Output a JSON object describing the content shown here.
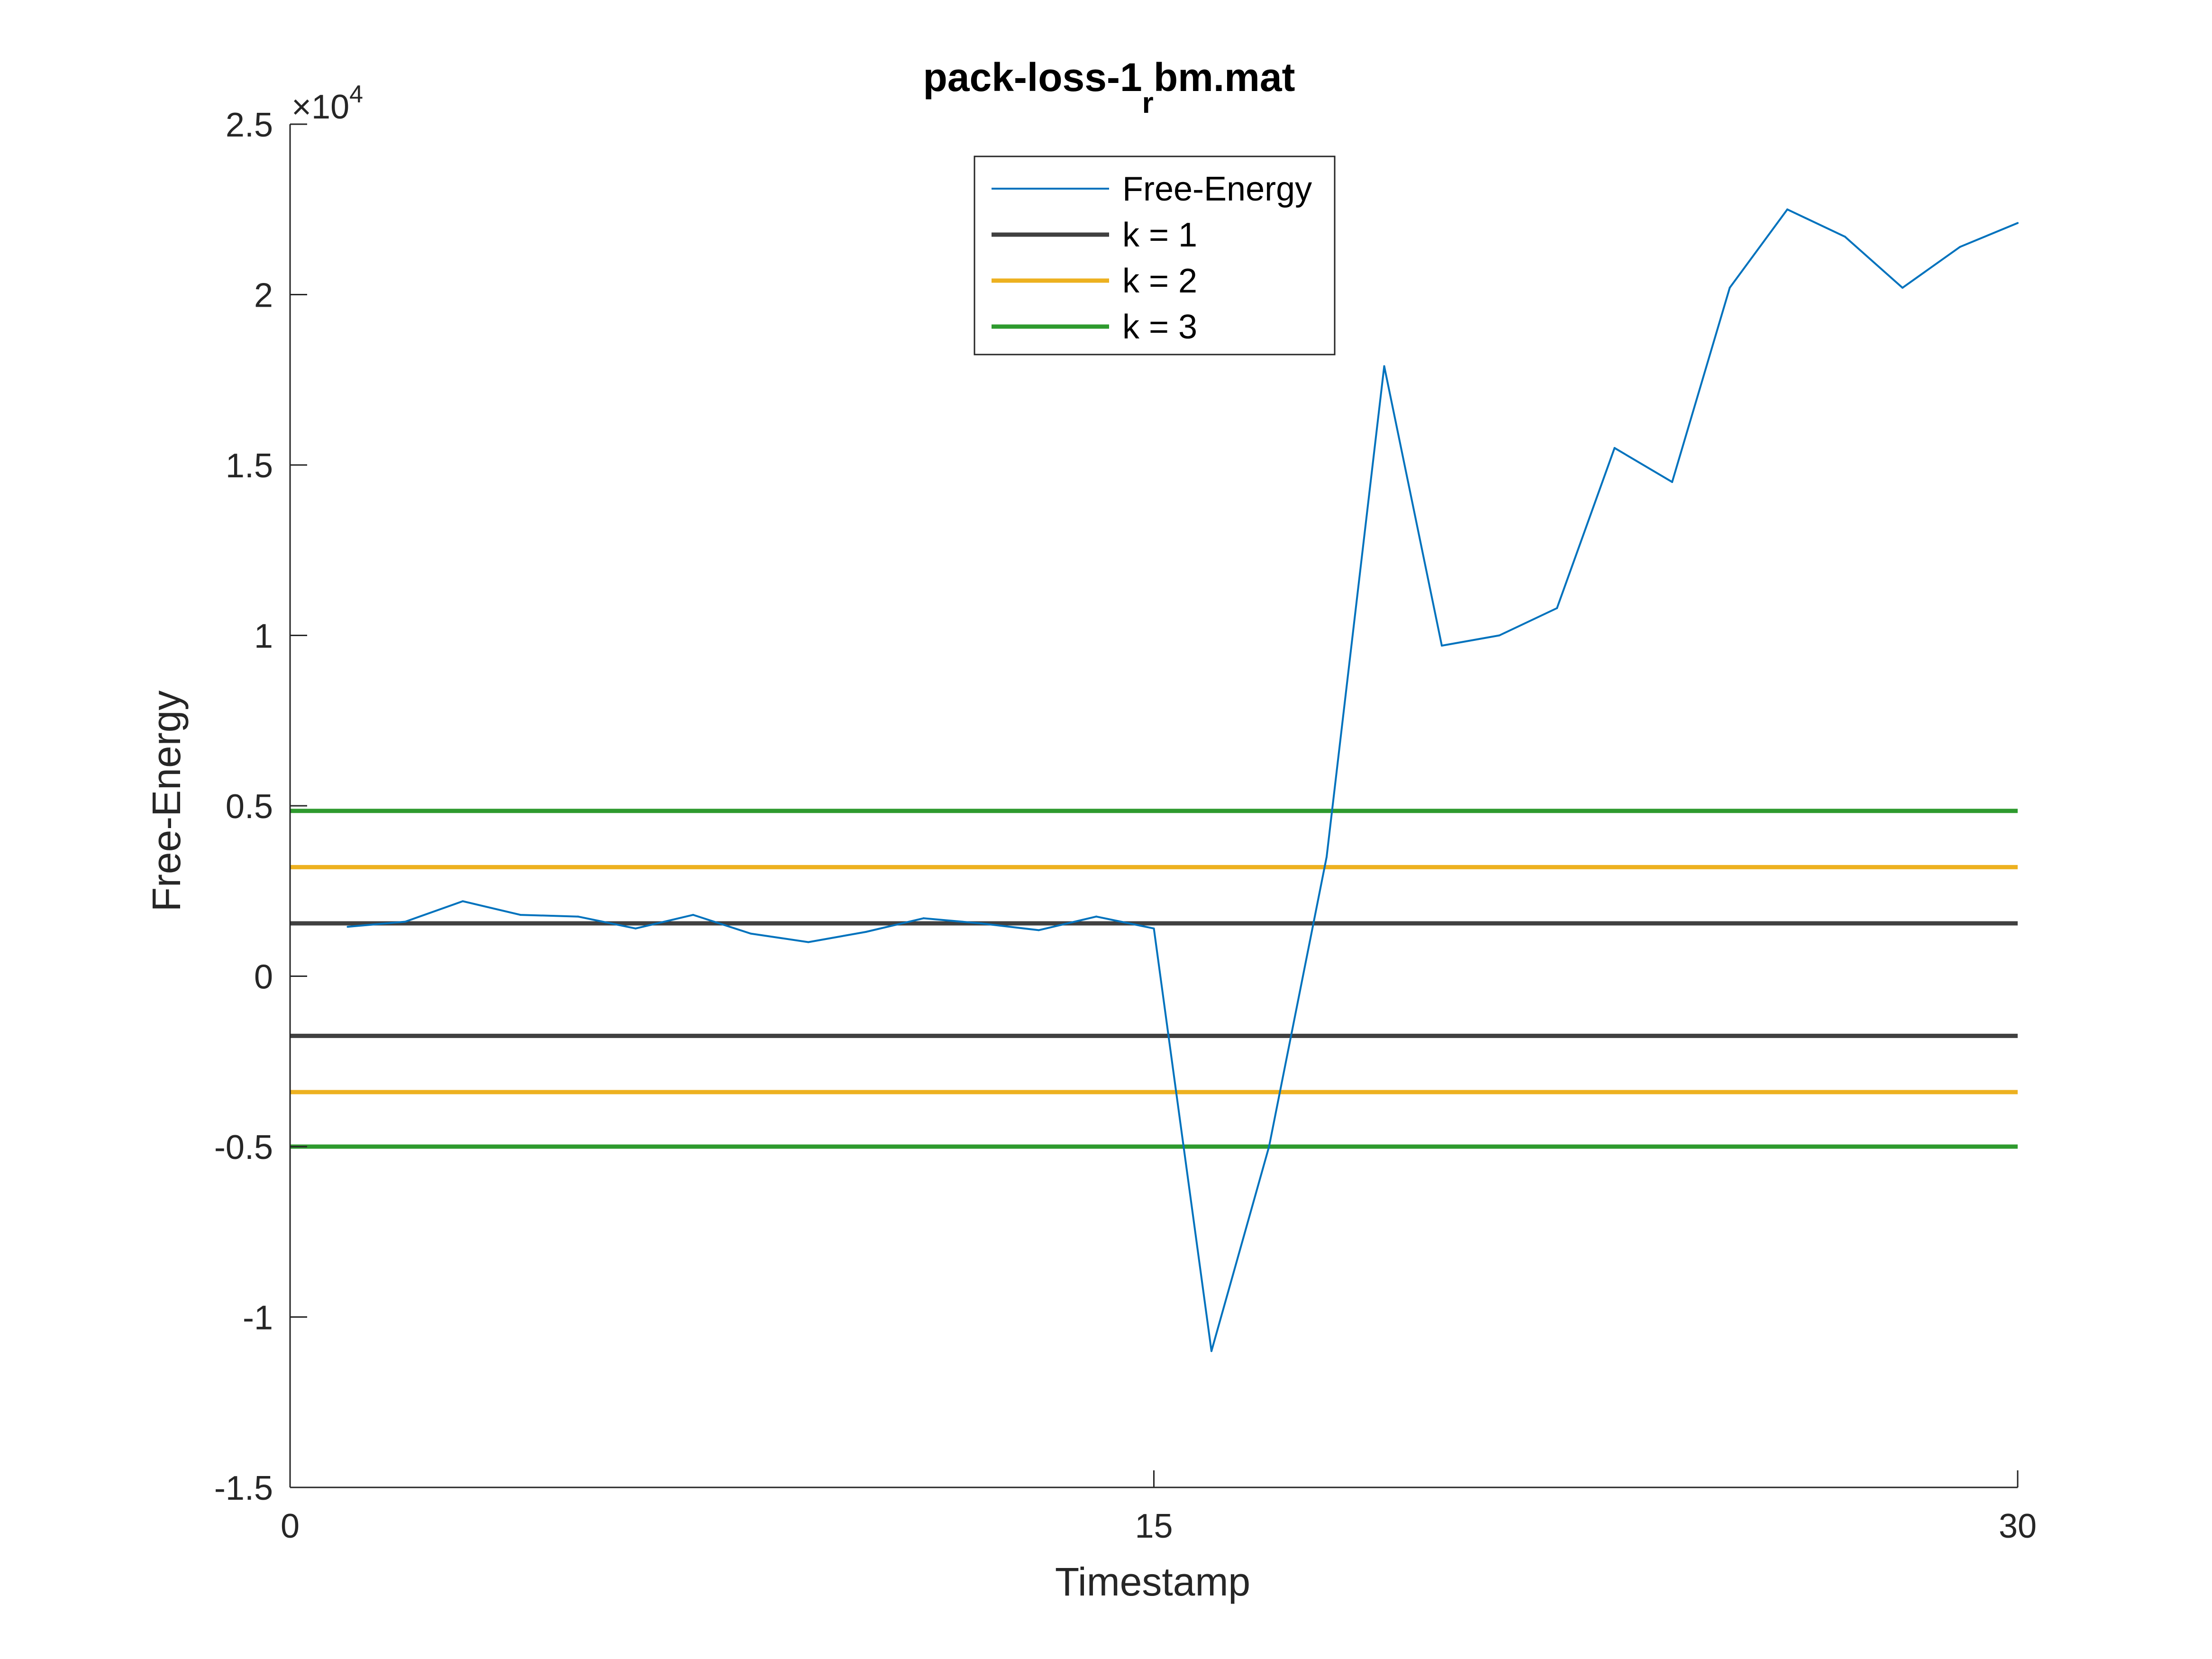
{
  "chart_data": {
    "type": "line",
    "title": "pack-loss-1",
    "title_subscript": "r",
    "title_suffix": "bm.mat",
    "xlabel": "Timestamp",
    "ylabel": "Free-Energy",
    "xlim": [
      0,
      30
    ],
    "ylim": [
      -15000,
      25000
    ],
    "x_ticks": [
      0,
      15,
      30
    ],
    "x_tick_labels": [
      "0",
      "15",
      "30"
    ],
    "y_ticks": [
      -15000,
      -10000,
      -5000,
      0,
      5000,
      10000,
      15000,
      20000,
      25000
    ],
    "y_tick_labels": [
      "-1.5",
      "-1",
      "-0.5",
      "0",
      "0.5",
      "1",
      "1.5",
      "2",
      "2.5"
    ],
    "y_exponent_prefix": "×10",
    "y_exponent": "4",
    "grid": false,
    "legend_position": "top-center",
    "legend": [
      "Free-Energy",
      "k = 1",
      "k = 2",
      "k = 3"
    ],
    "series": [
      {
        "name": "Free-Energy",
        "kind": "line",
        "color": "#0072BD",
        "x": [
          1,
          2,
          3,
          4,
          5,
          6,
          7,
          8,
          9,
          10,
          11,
          12,
          13,
          14,
          15,
          16,
          17,
          18,
          19,
          20,
          21,
          22,
          23,
          24,
          25,
          26,
          27,
          28,
          29,
          30
        ],
        "y": [
          1450,
          1600,
          2200,
          1800,
          1750,
          1400,
          1800,
          1250,
          1000,
          1300,
          1700,
          1550,
          1350,
          1750,
          1400,
          -11000,
          -5000,
          3500,
          17900,
          9700,
          10000,
          10800,
          15500,
          14500,
          20200,
          22500,
          21700,
          20200,
          21400,
          22100
        ]
      },
      {
        "name": "k = 1",
        "kind": "hlines",
        "color": "#404040",
        "levels": [
          1550,
          -1750
        ]
      },
      {
        "name": "k = 2",
        "kind": "hlines",
        "color": "#EDB120",
        "levels": [
          3200,
          -3400
        ]
      },
      {
        "name": "k = 3",
        "kind": "hlines",
        "color": "#2E9A2E",
        "levels": [
          4850,
          -5000
        ]
      }
    ]
  }
}
